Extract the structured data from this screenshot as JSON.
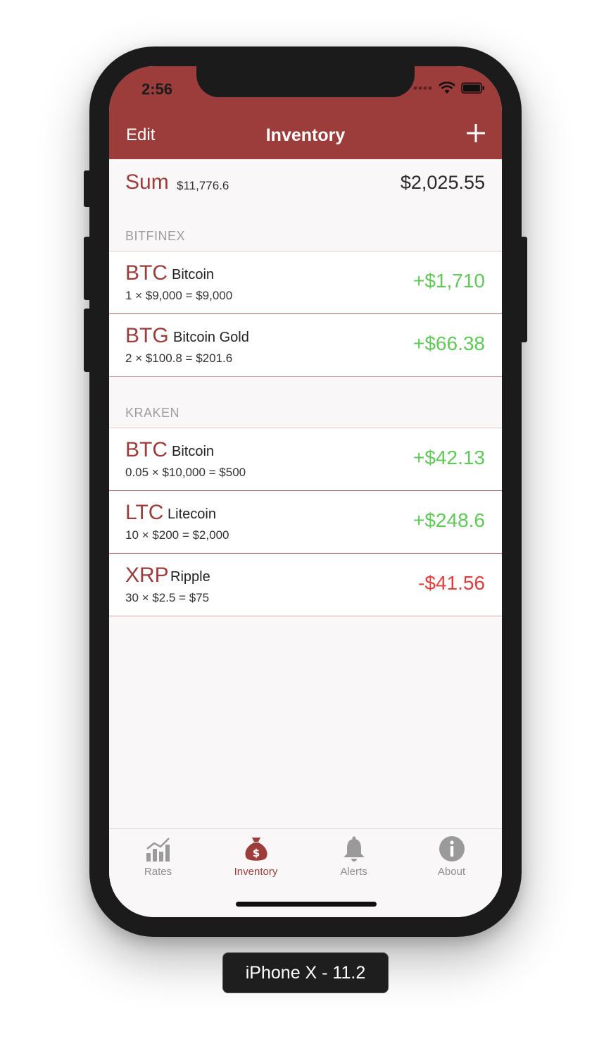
{
  "status": {
    "time": "2:56"
  },
  "nav": {
    "edit_label": "Edit",
    "title": "Inventory"
  },
  "sum": {
    "label": "Sum",
    "total_cost": "$11,776.6",
    "profit": "$2,025.55"
  },
  "sections": [
    {
      "title": "BITFINEX",
      "rows": [
        {
          "symbol": "BTC",
          "name": "Bitcoin",
          "formula": "1 × $9,000 = $9,000",
          "change": "+$1,710"
        },
        {
          "symbol": "BTG",
          "name": "Bitcoin Gold",
          "formula": "2 × $100.8 = $201.6",
          "change": "+$66.38"
        }
      ]
    },
    {
      "title": "KRAKEN",
      "rows": [
        {
          "symbol": "BTC",
          "name": "Bitcoin",
          "formula": "0.05 × $10,000 = $500",
          "change": "+$42.13"
        },
        {
          "symbol": "LTC",
          "name": "Litecoin",
          "formula": "10 × $200 = $2,000",
          "change": "+$248.6"
        },
        {
          "symbol": "XRP",
          "name": "Ripple",
          "formula": "30 × $2.5 = $75",
          "change": "-$41.56"
        }
      ]
    }
  ],
  "tabs": [
    {
      "label": "Rates",
      "icon": "chart-icon"
    },
    {
      "label": "Inventory",
      "icon": "money-bag-icon"
    },
    {
      "label": "Alerts",
      "icon": "bell-icon"
    },
    {
      "label": "About",
      "icon": "info-icon"
    }
  ],
  "device_label": "iPhone X - 11.2",
  "colors": {
    "brand": "#9c3d3b",
    "positive": "#61c85a",
    "negative": "#e0403d"
  }
}
